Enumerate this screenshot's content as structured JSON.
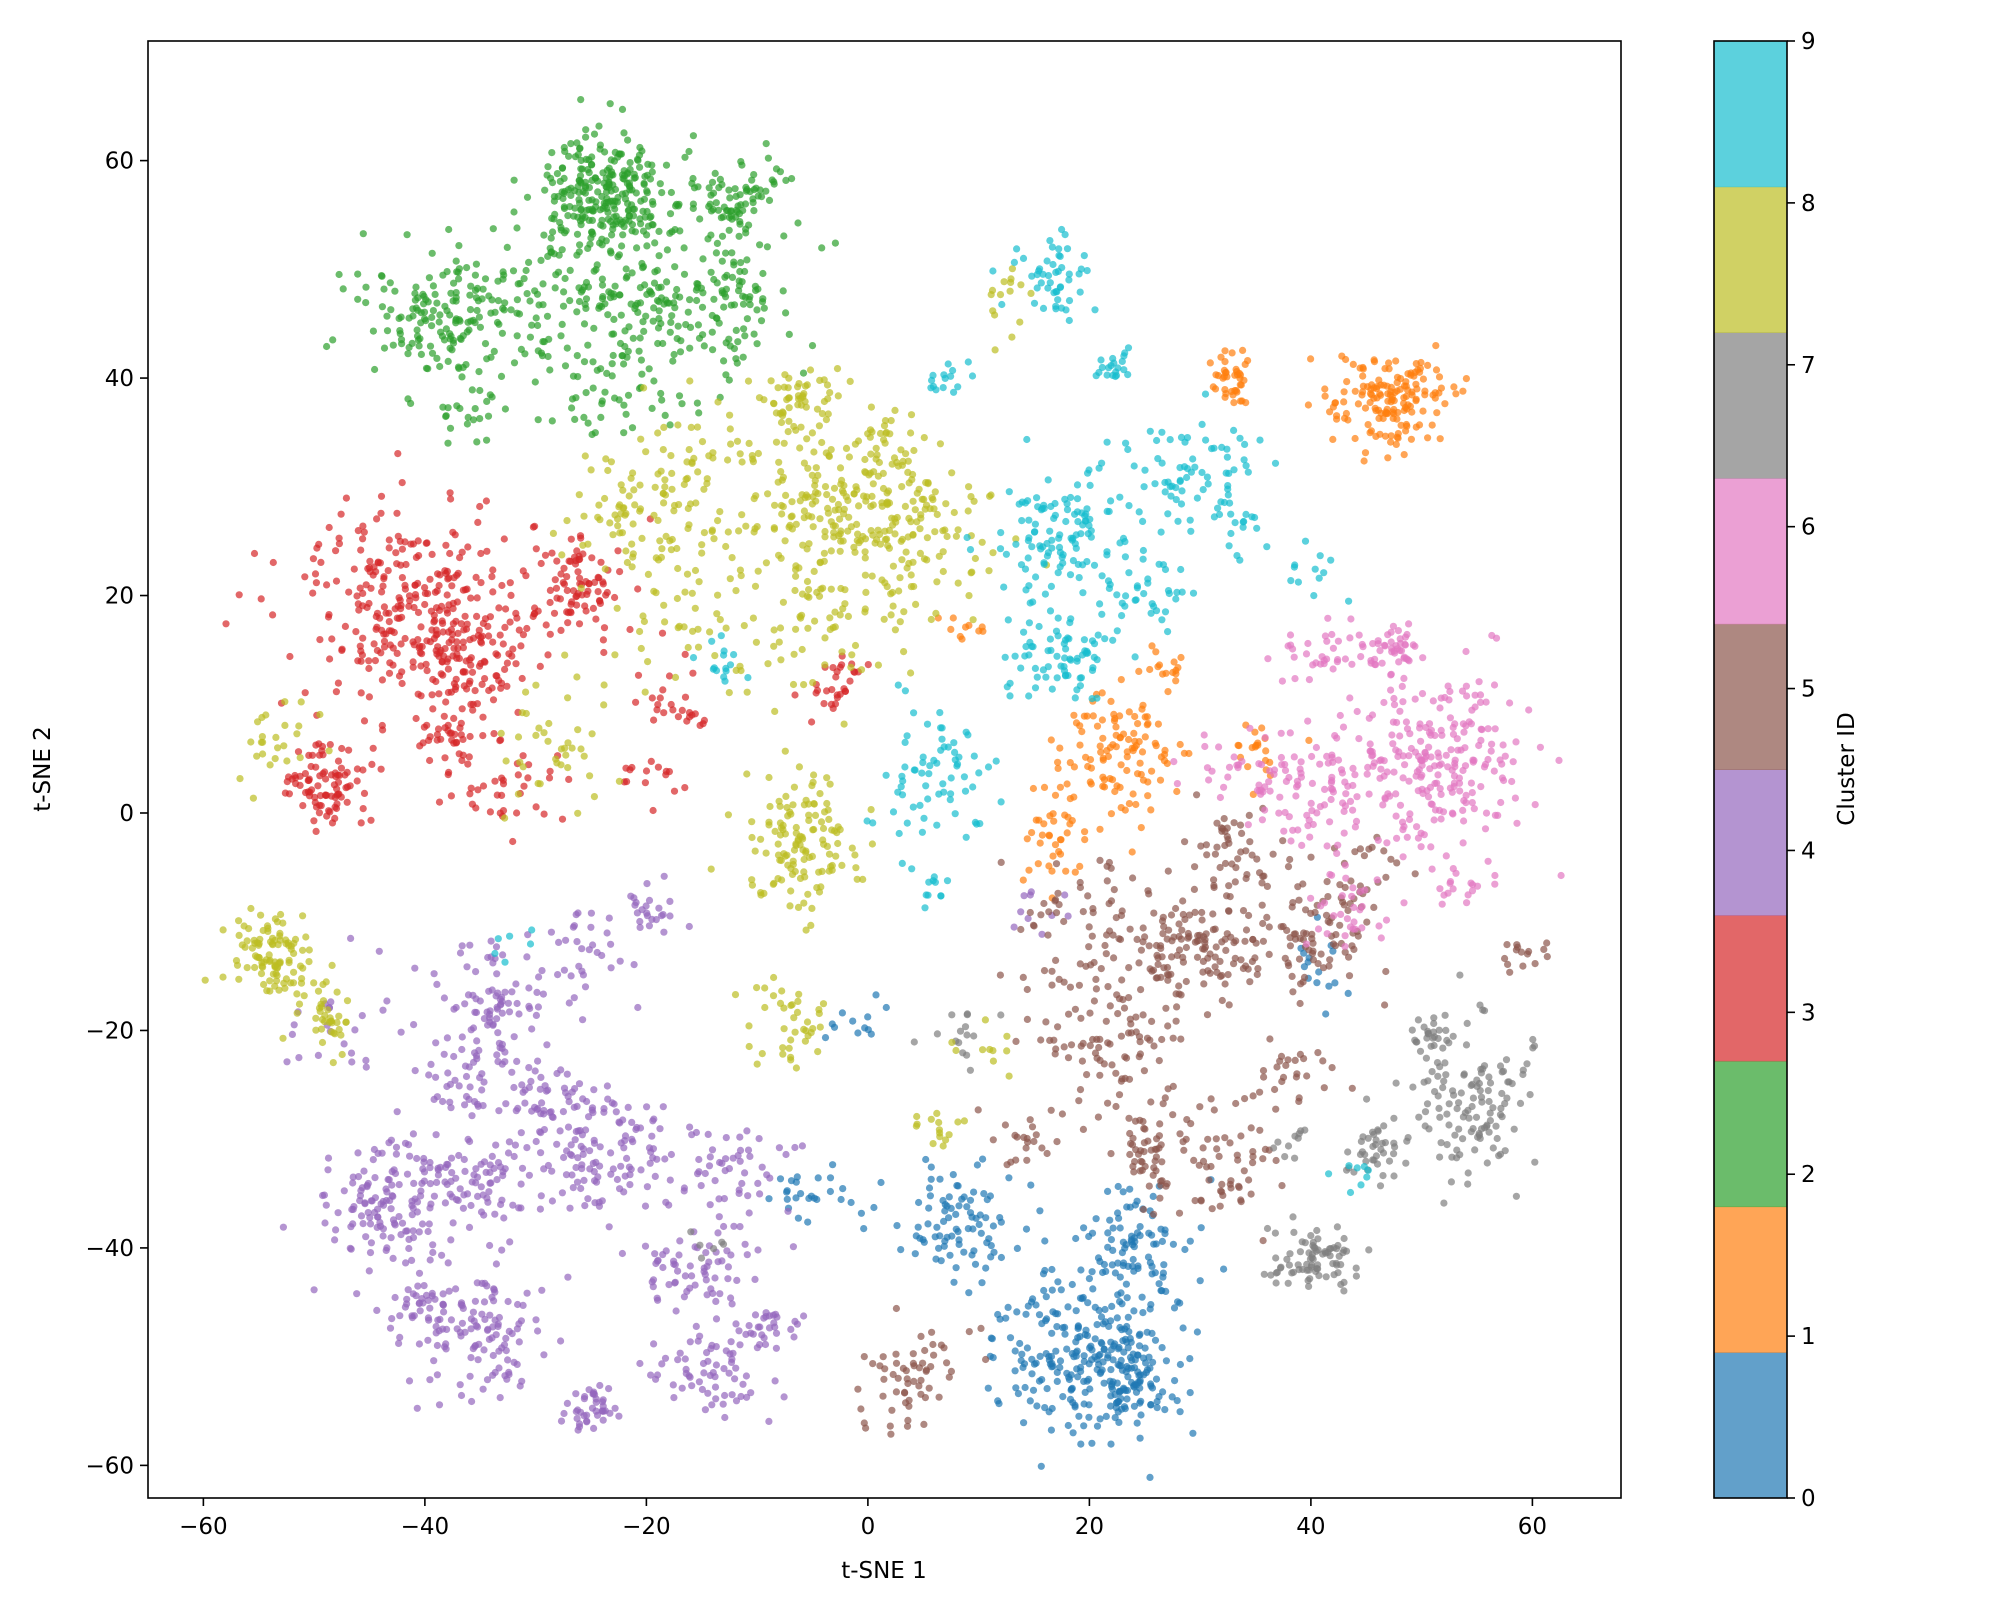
{
  "chart_data": {
    "type": "scatter",
    "title": "",
    "xlabel": "t-SNE 1",
    "ylabel": "t-SNE 2",
    "xlim": [
      -65,
      68
    ],
    "ylim": [
      -63,
      71
    ],
    "xticks": [
      -60,
      -40,
      -20,
      0,
      20,
      40,
      60
    ],
    "yticks": [
      -60,
      -40,
      -20,
      0,
      20,
      40,
      60
    ],
    "xtick_labels": [
      "−60",
      "−40",
      "−20",
      "0",
      "20",
      "40",
      "60"
    ],
    "ytick_labels": [
      "−60",
      "−40",
      "−20",
      "0",
      "20",
      "40",
      "60"
    ],
    "grid": false,
    "point_alpha": 0.7,
    "colorbar": {
      "label": "Cluster ID",
      "range": [
        0,
        9
      ],
      "ticks": [
        0,
        1,
        2,
        3,
        4,
        5,
        6,
        7,
        8,
        9
      ],
      "tick_labels": [
        "0",
        "1",
        "2",
        "3",
        "4",
        "5",
        "6",
        "7",
        "8",
        "9"
      ],
      "colors": [
        "#1f77b4",
        "#ff7f0e",
        "#2ca02c",
        "#d62728",
        "#9467bd",
        "#8c564b",
        "#e377c2",
        "#7f7f7f",
        "#bcbd22",
        "#17becf"
      ]
    },
    "series": [
      {
        "name": "0",
        "color": "#1f77b4",
        "clusters": [
          {
            "cx": 20,
            "cy": -50,
            "sx": 4,
            "sy": 3.5,
            "n": 260
          },
          {
            "cx": 24,
            "cy": -53,
            "sx": 2,
            "sy": 1.5,
            "n": 50
          },
          {
            "cx": 8,
            "cy": -38,
            "sx": 3,
            "sy": 3,
            "n": 90
          },
          {
            "cx": 24,
            "cy": -39,
            "sx": 3,
            "sy": 3,
            "n": 90
          },
          {
            "cx": -5,
            "cy": -35,
            "sx": 2,
            "sy": 1.5,
            "n": 25
          },
          {
            "cx": 42,
            "cy": -15,
            "sx": 2,
            "sy": 2,
            "n": 15
          },
          {
            "cx": -1,
            "cy": -19,
            "sx": 1.5,
            "sy": 1.5,
            "n": 12
          }
        ]
      },
      {
        "name": "1",
        "color": "#ff7f0e",
        "clusters": [
          {
            "cx": 47,
            "cy": 38,
            "sx": 2.5,
            "sy": 2.2,
            "n": 160
          },
          {
            "cx": 33,
            "cy": 40,
            "sx": 1.2,
            "sy": 1.2,
            "n": 40
          },
          {
            "cx": 23,
            "cy": 5,
            "sx": 3,
            "sy": 3,
            "n": 110
          },
          {
            "cx": 17,
            "cy": -2,
            "sx": 1.5,
            "sy": 2.5,
            "n": 40
          },
          {
            "cx": 35,
            "cy": 6,
            "sx": 1.5,
            "sy": 1.5,
            "n": 20
          },
          {
            "cx": 27,
            "cy": 13,
            "sx": 1,
            "sy": 1,
            "n": 15
          },
          {
            "cx": 9,
            "cy": 17,
            "sx": 1,
            "sy": 1,
            "n": 10
          }
        ]
      },
      {
        "name": "2",
        "color": "#2ca02c",
        "clusters": [
          {
            "cx": -24,
            "cy": 57,
            "sx": 3,
            "sy": 3,
            "n": 260
          },
          {
            "cx": -38,
            "cy": 46,
            "sx": 3.5,
            "sy": 3,
            "n": 160
          },
          {
            "cx": -22,
            "cy": 47,
            "sx": 7,
            "sy": 4,
            "n": 230
          },
          {
            "cx": -12,
            "cy": 56,
            "sx": 3,
            "sy": 2,
            "n": 90
          },
          {
            "cx": -12,
            "cy": 46,
            "sx": 2,
            "sy": 3,
            "n": 60
          },
          {
            "cx": -22,
            "cy": 38,
            "sx": 4,
            "sy": 2,
            "n": 40
          },
          {
            "cx": -36,
            "cy": 37,
            "sx": 2,
            "sy": 1.5,
            "n": 20
          }
        ]
      },
      {
        "name": "3",
        "color": "#d62728",
        "clusters": [
          {
            "cx": -42,
            "cy": 19,
            "sx": 5,
            "sy": 5,
            "n": 260
          },
          {
            "cx": -36,
            "cy": 14,
            "sx": 3,
            "sy": 3,
            "n": 120
          },
          {
            "cx": -26,
            "cy": 20,
            "sx": 2.5,
            "sy": 2.5,
            "n": 90
          },
          {
            "cx": -49,
            "cy": 2.5,
            "sx": 2,
            "sy": 2,
            "n": 90
          },
          {
            "cx": -38,
            "cy": 7,
            "sx": 1.5,
            "sy": 1,
            "n": 30
          },
          {
            "cx": -3,
            "cy": 12,
            "sx": 1.5,
            "sy": 1.5,
            "n": 30
          },
          {
            "cx": -17,
            "cy": 10,
            "sx": 1.5,
            "sy": 1.5,
            "n": 25
          },
          {
            "cx": -20,
            "cy": 3,
            "sx": 1.5,
            "sy": 1.5,
            "n": 15
          },
          {
            "cx": -33,
            "cy": 3,
            "sx": 3,
            "sy": 2,
            "n": 40
          }
        ]
      },
      {
        "name": "4",
        "color": "#9467bd",
        "clusters": [
          {
            "cx": -44,
            "cy": -36,
            "sx": 3,
            "sy": 3,
            "n": 120
          },
          {
            "cx": -36,
            "cy": -34,
            "sx": 4,
            "sy": 3,
            "n": 100
          },
          {
            "cx": -35,
            "cy": -48,
            "sx": 3,
            "sy": 2.5,
            "n": 110
          },
          {
            "cx": -40,
            "cy": -45,
            "sx": 2,
            "sy": 1.5,
            "n": 40
          },
          {
            "cx": -24,
            "cy": -31,
            "sx": 3,
            "sy": 3,
            "n": 110
          },
          {
            "cx": -29,
            "cy": -27,
            "sx": 2,
            "sy": 2,
            "n": 50
          },
          {
            "cx": -36,
            "cy": -24,
            "sx": 2,
            "sy": 2,
            "n": 50
          },
          {
            "cx": -34,
            "cy": -18,
            "sx": 2,
            "sy": 2,
            "n": 40
          },
          {
            "cx": -16,
            "cy": -42,
            "sx": 3,
            "sy": 2.5,
            "n": 70
          },
          {
            "cx": -15,
            "cy": -51,
            "sx": 3,
            "sy": 2.5,
            "n": 70
          },
          {
            "cx": -25,
            "cy": -55,
            "sx": 1.2,
            "sy": 1.2,
            "n": 40
          },
          {
            "cx": -9,
            "cy": -47,
            "sx": 1.5,
            "sy": 1,
            "n": 25
          },
          {
            "cx": -13,
            "cy": -33,
            "sx": 3,
            "sy": 2,
            "n": 50
          },
          {
            "cx": -20,
            "cy": -9,
            "sx": 1.5,
            "sy": 1.5,
            "n": 25
          },
          {
            "cx": -25,
            "cy": -12,
            "sx": 1.5,
            "sy": 1.5,
            "n": 20
          },
          {
            "cx": -32,
            "cy": -16,
            "sx": 5,
            "sy": 3,
            "n": 50
          },
          {
            "cx": -48,
            "cy": -20,
            "sx": 2,
            "sy": 2,
            "n": 20
          },
          {
            "cx": 15,
            "cy": -9,
            "sx": 1.5,
            "sy": 1.5,
            "n": 10
          }
        ]
      },
      {
        "name": "5",
        "color": "#8c564b",
        "clusters": [
          {
            "cx": 30,
            "cy": -12,
            "sx": 3,
            "sy": 2.5,
            "n": 110
          },
          {
            "cx": 33,
            "cy": -4,
            "sx": 2,
            "sy": 2,
            "n": 50
          },
          {
            "cx": 40,
            "cy": -12,
            "sx": 3,
            "sy": 3,
            "n": 80
          },
          {
            "cx": 20,
            "cy": -12,
            "sx": 4,
            "sy": 4,
            "n": 90
          },
          {
            "cx": 22,
            "cy": -22,
            "sx": 4,
            "sy": 4,
            "n": 90
          },
          {
            "cx": 31,
            "cy": -33,
            "sx": 3,
            "sy": 3,
            "n": 60
          },
          {
            "cx": 25,
            "cy": -31,
            "sx": 2,
            "sy": 2,
            "n": 40
          },
          {
            "cx": 38,
            "cy": -24,
            "sx": 2,
            "sy": 1.5,
            "n": 30
          },
          {
            "cx": 4,
            "cy": -52,
            "sx": 2.5,
            "sy": 2.5,
            "n": 60
          },
          {
            "cx": 14,
            "cy": -30,
            "sx": 2,
            "sy": 1.5,
            "n": 20
          },
          {
            "cx": 59,
            "cy": -13,
            "sx": 1.5,
            "sy": 1,
            "n": 15
          },
          {
            "cx": 45,
            "cy": -5,
            "sx": 2,
            "sy": 2,
            "n": 25
          }
        ]
      },
      {
        "name": "6",
        "color": "#e377c2",
        "clusters": [
          {
            "cx": 51,
            "cy": 5,
            "sx": 4,
            "sy": 5,
            "n": 240
          },
          {
            "cx": 47,
            "cy": 15,
            "sx": 1.5,
            "sy": 1.2,
            "n": 40
          },
          {
            "cx": 41,
            "cy": 2,
            "sx": 3,
            "sy": 3,
            "n": 80
          },
          {
            "cx": 40,
            "cy": 15,
            "sx": 2,
            "sy": 1.5,
            "n": 30
          },
          {
            "cx": 35,
            "cy": 4,
            "sx": 3,
            "sy": 2,
            "n": 40
          },
          {
            "cx": 43,
            "cy": -9,
            "sx": 2,
            "sy": 2.5,
            "n": 30
          },
          {
            "cx": 55,
            "cy": -7,
            "sx": 2,
            "sy": 1,
            "n": 15
          }
        ]
      },
      {
        "name": "7",
        "color": "#7f7f7f",
        "clusters": [
          {
            "cx": 54,
            "cy": -27,
            "sx": 2.5,
            "sy": 3.5,
            "n": 110
          },
          {
            "cx": 51,
            "cy": -20,
            "sx": 1,
            "sy": 1,
            "n": 25
          },
          {
            "cx": 40,
            "cy": -41,
            "sx": 2,
            "sy": 1.5,
            "n": 80
          },
          {
            "cx": 46,
            "cy": -31,
            "sx": 1.5,
            "sy": 2,
            "n": 40
          },
          {
            "cx": 38,
            "cy": -30,
            "sx": 1,
            "sy": 1,
            "n": 10
          },
          {
            "cx": 8,
            "cy": -20,
            "sx": 2,
            "sy": 1.5,
            "n": 15
          },
          {
            "cx": -14,
            "cy": -40,
            "sx": 1,
            "sy": 1,
            "n": 6
          },
          {
            "cx": 58,
            "cy": -25,
            "sx": 1.5,
            "sy": 1.5,
            "n": 12
          }
        ]
      },
      {
        "name": "8",
        "color": "#bcbd22",
        "clusters": [
          {
            "cx": -54,
            "cy": -13,
            "sx": 2,
            "sy": 2,
            "n": 100
          },
          {
            "cx": -49,
            "cy": -19,
            "sx": 1.5,
            "sy": 1.5,
            "n": 40
          },
          {
            "cx": -6,
            "cy": -3,
            "sx": 2.5,
            "sy": 3,
            "n": 130
          },
          {
            "cx": -6,
            "cy": 38,
            "sx": 2,
            "sy": 2,
            "n": 60
          },
          {
            "cx": -3,
            "cy": 28,
            "sx": 4,
            "sy": 3,
            "n": 160
          },
          {
            "cx": -16,
            "cy": 30,
            "sx": 4,
            "sy": 3,
            "n": 90
          },
          {
            "cx": 5,
            "cy": 25,
            "sx": 4,
            "sy": 4,
            "n": 100
          },
          {
            "cx": -22,
            "cy": 26,
            "sx": 3,
            "sy": 3,
            "n": 40
          },
          {
            "cx": -7,
            "cy": -20,
            "sx": 2,
            "sy": 2,
            "n": 40
          },
          {
            "cx": -7,
            "cy": 18,
            "sx": 5,
            "sy": 4,
            "n": 80
          },
          {
            "cx": -18,
            "cy": 20,
            "sx": 3,
            "sy": 4,
            "n": 40
          },
          {
            "cx": -53,
            "cy": 6,
            "sx": 1.5,
            "sy": 2,
            "n": 25
          },
          {
            "cx": 6,
            "cy": -29,
            "sx": 1.5,
            "sy": 1,
            "n": 15
          },
          {
            "cx": -28,
            "cy": 6,
            "sx": 3,
            "sy": 3,
            "n": 40
          },
          {
            "cx": 13,
            "cy": 47,
            "sx": 1.5,
            "sy": 2,
            "n": 15
          },
          {
            "cx": 2,
            "cy": 34,
            "sx": 1.5,
            "sy": 1.5,
            "n": 30
          },
          {
            "cx": 10,
            "cy": -22,
            "sx": 2,
            "sy": 1,
            "n": 10
          }
        ]
      },
      {
        "name": "9",
        "color": "#17becf",
        "clusters": [
          {
            "cx": 17,
            "cy": 50,
            "sx": 1.5,
            "sy": 2.5,
            "n": 50
          },
          {
            "cx": 18,
            "cy": 25,
            "sx": 3.5,
            "sy": 3,
            "n": 120
          },
          {
            "cx": 17,
            "cy": 14,
            "sx": 2.5,
            "sy": 2,
            "n": 70
          },
          {
            "cx": 6,
            "cy": 3,
            "sx": 3,
            "sy": 3,
            "n": 70
          },
          {
            "cx": 24,
            "cy": 20,
            "sx": 3,
            "sy": 2,
            "n": 40
          },
          {
            "cx": 29,
            "cy": 31,
            "sx": 4,
            "sy": 3,
            "n": 60
          },
          {
            "cx": 22,
            "cy": 41,
            "sx": 1,
            "sy": 1,
            "n": 20
          },
          {
            "cx": 7,
            "cy": 40,
            "sx": 1.5,
            "sy": 1,
            "n": 15
          },
          {
            "cx": 33,
            "cy": 27,
            "sx": 1.5,
            "sy": 1.5,
            "n": 15
          },
          {
            "cx": -13,
            "cy": 14,
            "sx": 1,
            "sy": 1,
            "n": 15
          },
          {
            "cx": 6,
            "cy": -7,
            "sx": 1,
            "sy": 1,
            "n": 10
          },
          {
            "cx": 44,
            "cy": -33,
            "sx": 1,
            "sy": 1,
            "n": 8
          },
          {
            "cx": 40,
            "cy": 22,
            "sx": 1.5,
            "sy": 1.5,
            "n": 12
          },
          {
            "cx": -33,
            "cy": -12,
            "sx": 1,
            "sy": 1,
            "n": 6
          },
          {
            "cx": 33,
            "cy": 33,
            "sx": 1,
            "sy": 1.5,
            "n": 12
          }
        ]
      }
    ]
  }
}
